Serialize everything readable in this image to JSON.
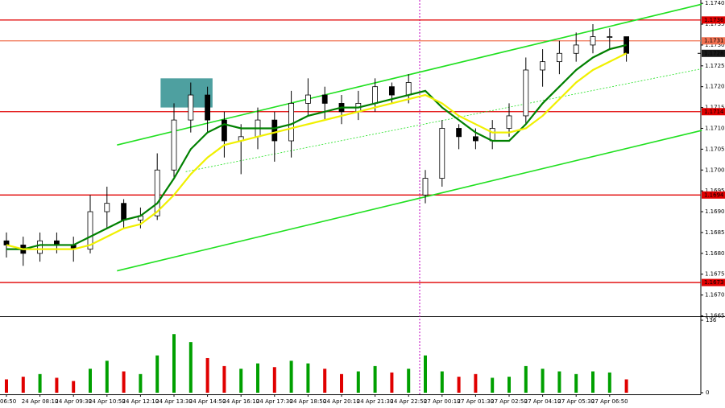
{
  "chart_data": {
    "type": "candlestick",
    "categories": [
      "06:50",
      null,
      "24 Apr 08:10",
      null,
      "24 Apr 09:30",
      null,
      "24 Apr 10:50",
      null,
      "24 Apr 12:10",
      null,
      "24 Apr 13:30",
      null,
      "24 Apr 14:50",
      null,
      "24 Apr 16:10",
      null,
      "24 Apr 17:30",
      null,
      "24 Apr 18:50",
      null,
      "24 Apr 20:10",
      null,
      "24 Apr 21:30",
      null,
      "24 Apr 22:50",
      null,
      "27 Apr 00:10",
      null,
      "27 Apr 01:30",
      null,
      "27 Apr 02:50",
      null,
      "27 Apr 04:10",
      null,
      "27 Apr 05:30",
      null,
      "27 Apr 06:50",
      null
    ],
    "open": [
      1.1683,
      1.1682,
      1.168,
      1.1683,
      1.1682,
      1.1681,
      1.169,
      1.1692,
      1.1688,
      1.1689,
      1.17,
      1.1712,
      1.1718,
      1.1712,
      1.1707,
      1.1708,
      1.1712,
      1.1707,
      1.1716,
      1.1718,
      1.1716,
      1.1714,
      1.1716,
      1.172,
      1.1718,
      1.1694,
      1.1698,
      1.171,
      1.1708,
      1.1707,
      1.171,
      1.1713,
      1.1724,
      1.1726,
      1.1728,
      1.173,
      1.1732,
      1.1732
    ],
    "high": [
      1.1685,
      1.1684,
      1.1685,
      1.1685,
      1.1684,
      1.1694,
      1.1696,
      1.1693,
      1.1691,
      1.1704,
      1.1716,
      1.1721,
      1.172,
      1.1714,
      1.1711,
      1.1715,
      1.1714,
      1.1719,
      1.1722,
      1.172,
      1.1718,
      1.1719,
      1.1722,
      1.1721,
      1.1723,
      1.17,
      1.1712,
      1.1711,
      1.171,
      1.1712,
      1.1716,
      1.1727,
      1.1729,
      1.1731,
      1.1733,
      1.1735,
      1.1734,
      1.1732
    ],
    "low": [
      1.1679,
      1.1677,
      1.1678,
      1.168,
      1.1678,
      1.168,
      1.1686,
      1.1686,
      1.1686,
      1.1688,
      1.1698,
      1.1709,
      1.1709,
      1.1703,
      1.1699,
      1.1705,
      1.1702,
      1.1703,
      1.1713,
      1.1712,
      1.1711,
      1.1712,
      1.1714,
      1.1716,
      1.1716,
      1.1692,
      1.1696,
      1.1705,
      1.1705,
      1.1705,
      1.1708,
      1.1711,
      1.172,
      1.1723,
      1.1726,
      1.1728,
      1.1729,
      1.1726
    ],
    "close": [
      1.1682,
      1.168,
      1.1683,
      1.1682,
      1.1681,
      1.169,
      1.1692,
      1.1688,
      1.1689,
      1.17,
      1.1712,
      1.1718,
      1.1712,
      1.1707,
      1.1708,
      1.1712,
      1.1707,
      1.1716,
      1.1718,
      1.1716,
      1.1714,
      1.1716,
      1.172,
      1.1718,
      1.1721,
      1.1698,
      1.171,
      1.1708,
      1.1707,
      1.171,
      1.1713,
      1.1724,
      1.1726,
      1.1728,
      1.173,
      1.1732,
      1.1732,
      1.1728
    ],
    "up_color": "#00a000",
    "down_color": "#e00000",
    "moving_averages": [
      {
        "color": "#008000",
        "values": [
          1.1681,
          1.1681,
          1.1682,
          1.1682,
          1.1682,
          1.1684,
          1.1686,
          1.1688,
          1.1689,
          1.1692,
          1.1698,
          1.1705,
          1.1709,
          1.1711,
          1.171,
          1.171,
          1.171,
          1.1711,
          1.1713,
          1.1714,
          1.1715,
          1.1715,
          1.1716,
          1.1717,
          1.1718,
          1.1719,
          1.1715,
          1.1712,
          1.1709,
          1.1707,
          1.1707,
          1.1711,
          1.1716,
          1.172,
          1.1724,
          1.1727,
          1.1729,
          1.173
        ]
      },
      {
        "color": "#f0f000",
        "values": [
          1.1682,
          1.1681,
          1.1681,
          1.1681,
          1.1681,
          1.1682,
          1.1684,
          1.1686,
          1.1687,
          1.169,
          1.1694,
          1.1699,
          1.1703,
          1.1706,
          1.1707,
          1.1708,
          1.1709,
          1.171,
          1.1711,
          1.1712,
          1.1713,
          1.1714,
          1.1715,
          1.1716,
          1.1717,
          1.1718,
          1.1716,
          1.1713,
          1.1711,
          1.1709,
          1.1709,
          1.171,
          1.1713,
          1.1717,
          1.1721,
          1.1724,
          1.1726,
          1.1728
        ]
      }
    ],
    "ylim": [
      1.16649,
      1.17408
    ],
    "yticks": [
      {
        "value": 1.1665,
        "label": "1.1665"
      },
      {
        "value": 1.167,
        "label": "1.1670"
      },
      {
        "value": 1.1675,
        "label": "1.1675"
      },
      {
        "value": 1.168,
        "label": "1.1680"
      },
      {
        "value": 1.1685,
        "label": "1.1685"
      },
      {
        "value": 1.169,
        "label": "1.1690"
      },
      {
        "value": 1.1695,
        "label": "1.1695"
      },
      {
        "value": 1.17,
        "label": "1.1700"
      },
      {
        "value": 1.1705,
        "label": "1.1705"
      },
      {
        "value": 1.171,
        "label": "1.1710"
      },
      {
        "value": 1.1715,
        "label": "1.1715"
      },
      {
        "value": 1.172,
        "label": "1.1720"
      },
      {
        "value": 1.1725,
        "label": "1.1725"
      },
      {
        "value": 1.173,
        "label": "1.1730"
      },
      {
        "value": 1.1735,
        "label": "1.1735"
      },
      {
        "value": 1.174,
        "label": "1.1740"
      }
    ],
    "levels": [
      {
        "value": 1.1736,
        "color": "#e00000"
      },
      {
        "value": 1.1731,
        "color": "#f07050"
      },
      {
        "value": 1.1714,
        "color": "#e00000"
      },
      {
        "value": 1.1694,
        "color": "#e00000"
      },
      {
        "value": 1.1673,
        "color": "#e00000"
      }
    ],
    "current_price": 1.1728,
    "trendlines": [
      {
        "color": "#20e020",
        "dashed": false,
        "x": [
          6.6,
          41.5
        ],
        "y": [
          1.1706,
          1.17398
        ]
      },
      {
        "color": "#20e020",
        "dashed": false,
        "x": [
          6.6,
          41.5
        ],
        "y": [
          1.16758,
          1.17095
        ]
      },
      {
        "color": "#20e020",
        "dashed": true,
        "x": [
          10.7,
          41.5
        ],
        "y": [
          1.16996,
          1.17243
        ]
      }
    ],
    "zone": {
      "color": "#2f8f8f",
      "x": [
        9.2,
        12.3
      ],
      "y": [
        1.1715,
        1.1722
      ]
    },
    "volume": [
      25,
      30,
      35,
      28,
      22,
      45,
      60,
      40,
      35,
      70,
      110,
      95,
      65,
      50,
      45,
      55,
      48,
      60,
      55,
      45,
      35,
      40,
      50,
      38,
      45,
      70,
      40,
      30,
      35,
      28,
      30,
      50,
      45,
      40,
      35,
      40,
      38,
      25
    ],
    "volume_ylim": [
      0,
      136
    ],
    "volume_yticks": [
      0,
      136
    ]
  }
}
